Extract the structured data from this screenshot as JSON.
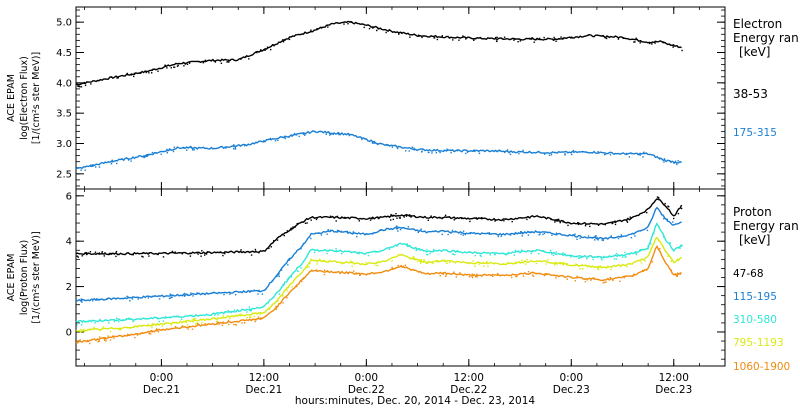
{
  "xlabel": "hours:minutes, Dec. 20, 2014 - Dec. 23, 2014",
  "x_ticks": [
    {
      "x": 0,
      "time": "0:00",
      "date": "Dec.21"
    },
    {
      "x": 12,
      "time": "12:00",
      "date": "Dec.21"
    },
    {
      "x": 24,
      "time": "0:00",
      "date": "Dec.22"
    },
    {
      "x": 36,
      "time": "12:00",
      "date": "Dec.22"
    },
    {
      "x": 48,
      "time": "0:00",
      "date": "Dec.23"
    },
    {
      "x": 60,
      "time": "12:00",
      "date": "Dec.23"
    }
  ],
  "colors": {
    "black": "#000000",
    "blue": "#1a7fd4",
    "cyan": "#2ee6d6",
    "yellow": "#d8ea10",
    "orange": "#f08c10"
  },
  "chart_data": [
    {
      "type": "line",
      "x_unit": "hours from 0:00 Dec.21, 2014",
      "xlim": [
        -10,
        66
      ],
      "ylim": [
        2.25,
        5.25
      ],
      "ylabel_lines": [
        "ACE EPAM",
        "log(Electron Flux)",
        "[1/(cm²s ster MeV)]"
      ],
      "y_ticks": [
        2.5,
        3.0,
        3.5,
        4.0,
        4.5,
        5.0
      ],
      "y_tick_labels": [
        "2.5",
        "3.0",
        "3.5",
        "4.0",
        "4.5",
        "5.0"
      ],
      "legend_title": [
        "Electron",
        "Energy ran",
        "[keV]"
      ],
      "series": [
        {
          "name": "38-53",
          "color": "black",
          "x": [
            -10,
            -6,
            -2,
            2,
            6,
            9,
            12,
            15,
            18,
            20,
            22,
            24,
            27,
            30,
            34,
            38,
            42,
            46,
            50,
            54,
            57,
            58.5,
            59.5,
            61
          ],
          "y": [
            3.97,
            4.08,
            4.18,
            4.32,
            4.37,
            4.38,
            4.55,
            4.75,
            4.87,
            4.97,
            5.0,
            4.95,
            4.85,
            4.78,
            4.75,
            4.73,
            4.72,
            4.72,
            4.78,
            4.75,
            4.67,
            4.68,
            4.63,
            4.58
          ]
        },
        {
          "name": "175-315",
          "color": "blue",
          "x": [
            -10,
            -6,
            -2,
            2,
            6,
            10,
            14,
            18,
            22,
            26,
            30,
            34,
            38,
            42,
            46,
            50,
            54,
            57,
            59,
            61
          ],
          "y": [
            2.58,
            2.7,
            2.8,
            2.93,
            2.92,
            2.98,
            3.1,
            3.2,
            3.15,
            2.98,
            2.9,
            2.88,
            2.88,
            2.86,
            2.85,
            2.86,
            2.83,
            2.83,
            2.72,
            2.68
          ]
        }
      ]
    },
    {
      "type": "line",
      "x_unit": "hours from 0:00 Dec.21, 2014",
      "xlim": [
        -10,
        66
      ],
      "ylim": [
        -1.5,
        6.3
      ],
      "ylabel_lines": [
        "ACE EPAM",
        "log(Proton Flux)",
        "[1/(cm²s ster MeV)]"
      ],
      "y_ticks": [
        0,
        2,
        4,
        6
      ],
      "y_tick_labels": [
        "0",
        "2",
        "4",
        "6"
      ],
      "legend_title": [
        "Proton",
        "Energy ran",
        "[keV]"
      ],
      "series": [
        {
          "name": "47-68",
          "color": "black",
          "x": [
            -10,
            -4,
            0,
            6,
            12,
            13.5,
            15,
            16.5,
            17.5,
            20,
            24,
            26,
            28,
            31,
            33,
            36,
            40,
            44,
            48,
            52,
            55,
            57,
            58,
            59,
            60,
            61
          ],
          "y": [
            3.45,
            3.45,
            3.46,
            3.5,
            3.55,
            4.1,
            4.5,
            4.85,
            5.05,
            5.05,
            5.0,
            5.05,
            5.15,
            5.05,
            5.05,
            5.0,
            4.95,
            5.1,
            4.8,
            4.75,
            5.0,
            5.4,
            5.9,
            5.6,
            5.1,
            5.6
          ]
        },
        {
          "name": "115-195",
          "color": "blue",
          "x": [
            -10,
            -4,
            0,
            6,
            12,
            13.5,
            15,
            16.5,
            17.5,
            20,
            24,
            26,
            28,
            31,
            33,
            36,
            40,
            44,
            48,
            52,
            55,
            57,
            58,
            59,
            60,
            61
          ],
          "y": [
            1.38,
            1.5,
            1.58,
            1.7,
            1.82,
            2.5,
            3.2,
            3.8,
            4.3,
            4.45,
            4.3,
            4.5,
            4.6,
            4.4,
            4.45,
            4.35,
            4.3,
            4.42,
            4.25,
            4.1,
            4.3,
            4.6,
            5.5,
            5.0,
            4.7,
            4.9
          ]
        },
        {
          "name": "310-580",
          "color": "cyan",
          "x": [
            -10,
            -4,
            0,
            6,
            12,
            13.5,
            15,
            16.5,
            17.5,
            20,
            24,
            26,
            28,
            31,
            33,
            36,
            40,
            44,
            48,
            52,
            55,
            57,
            58,
            59,
            60,
            61
          ],
          "y": [
            0.45,
            0.55,
            0.62,
            0.78,
            1.1,
            1.7,
            2.4,
            3.05,
            3.6,
            3.6,
            3.45,
            3.6,
            3.9,
            3.55,
            3.6,
            3.5,
            3.45,
            3.6,
            3.35,
            3.3,
            3.45,
            3.7,
            4.8,
            4.1,
            3.6,
            3.85
          ]
        },
        {
          "name": "795-1193",
          "color": "yellow",
          "x": [
            -10,
            -4,
            0,
            6,
            12,
            13.5,
            15,
            16.5,
            17.5,
            20,
            24,
            26,
            28,
            31,
            33,
            36,
            40,
            44,
            48,
            52,
            55,
            57,
            58,
            59,
            60,
            61
          ],
          "y": [
            0.05,
            0.2,
            0.35,
            0.58,
            0.85,
            1.35,
            2.05,
            2.65,
            3.15,
            3.1,
            3.0,
            3.1,
            3.4,
            3.05,
            3.15,
            3.05,
            3.0,
            3.15,
            2.95,
            2.85,
            3.0,
            3.3,
            4.2,
            3.6,
            3.05,
            3.3
          ]
        },
        {
          "name": "1060-1900",
          "color": "orange",
          "x": [
            -10,
            -4,
            0,
            6,
            12,
            13.5,
            15,
            16.5,
            17.5,
            20,
            24,
            26,
            28,
            31,
            33,
            36,
            40,
            44,
            48,
            52,
            55,
            57,
            58,
            59,
            60,
            61
          ],
          "y": [
            -0.45,
            -0.15,
            0.1,
            0.35,
            0.6,
            1.1,
            1.75,
            2.3,
            2.7,
            2.65,
            2.55,
            2.65,
            2.9,
            2.55,
            2.6,
            2.5,
            2.5,
            2.6,
            2.4,
            2.3,
            2.45,
            2.8,
            3.8,
            3.1,
            2.5,
            2.6
          ]
        }
      ]
    }
  ]
}
